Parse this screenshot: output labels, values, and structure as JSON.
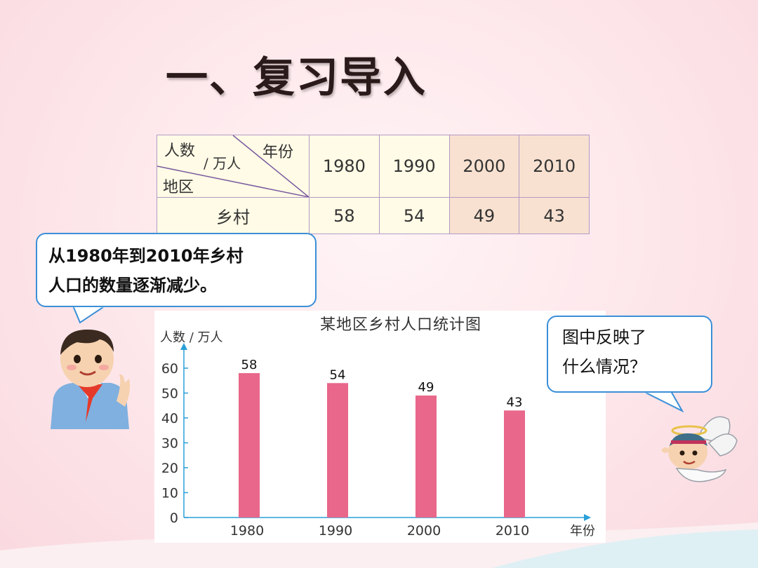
{
  "title": "一、复习导入",
  "table": {
    "corner_top_left": "人数",
    "corner_unit": "/ 万人",
    "corner_top_right": "年份",
    "corner_bottom": "地区",
    "years": [
      "1980",
      "1990",
      "2000",
      "2010"
    ],
    "row_label": "乡村",
    "values": [
      "58",
      "54",
      "49",
      "43"
    ]
  },
  "bubble_left": {
    "line1": "从1980年到2010年乡村",
    "line2": "人口的数量逐渐减少。"
  },
  "bubble_right": {
    "line1": "图中反映了",
    "line2": "什么情况？"
  },
  "chart_data": {
    "type": "bar",
    "title": "某地区乡村人口统计图",
    "ylabel": "人数 / 万人",
    "xlabel": "年份",
    "categories": [
      "1980",
      "1990",
      "2000",
      "2010"
    ],
    "values": [
      58,
      54,
      49,
      43
    ],
    "ylim": [
      0,
      60
    ],
    "yticks": [
      0,
      10,
      20,
      30,
      40,
      50,
      60
    ],
    "bar_color": "#e8678a",
    "axis_color": "#2a9fd8",
    "grid": false
  },
  "colors": {
    "bubble_border": "#3a8fd8",
    "table_highlight": "#f8e1d0",
    "table_bg": "#fffbe6"
  }
}
